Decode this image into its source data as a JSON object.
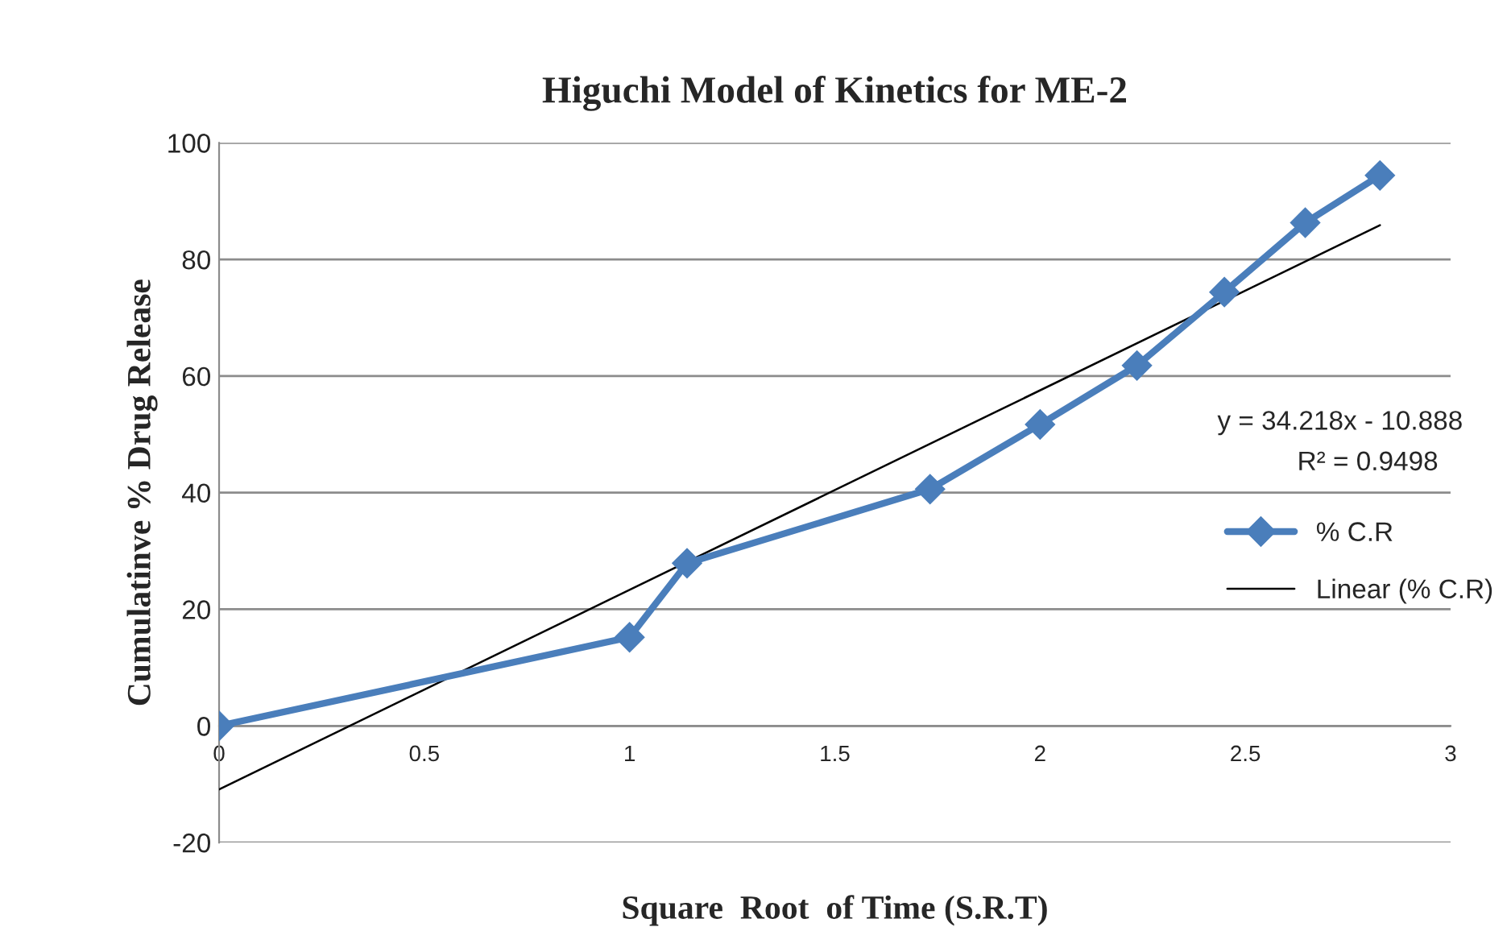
{
  "chart_data": {
    "type": "line",
    "title": "Higuchi Model of Kinetics for ME-2",
    "xlabel": "Square  Root  of Time (S.R.T)",
    "ylabel": "Cumulatinve % Drug Release",
    "annotations": [
      "y = 34.218x - 10.888",
      "R² = 0.9498"
    ],
    "series": [
      {
        "name": "% C.R",
        "color": "#4a7ebb",
        "marker": "diamond",
        "line_style": "solid",
        "x": [
          0,
          1,
          1.14,
          1.732,
          2,
          2.236,
          2.449,
          2.646,
          2.828
        ],
        "values": [
          0,
          15.2,
          27.9,
          40.6,
          51.7,
          61.8,
          74.4,
          86.3,
          94.4
        ]
      },
      {
        "name": "Linear (% C.R)",
        "color": "#000000",
        "marker": "none",
        "line_style": "solid",
        "x": [
          0,
          2.828
        ],
        "values": [
          -10.888,
          85.88
        ]
      }
    ],
    "xlim": [
      0,
      3
    ],
    "xticks": [
      0,
      0.5,
      1,
      1.5,
      2,
      2.5,
      3
    ],
    "ylim": [
      -20,
      100
    ],
    "yticks": [
      -20,
      0,
      20,
      40,
      60,
      80,
      100
    ],
    "grid": "y",
    "legend": "right"
  }
}
